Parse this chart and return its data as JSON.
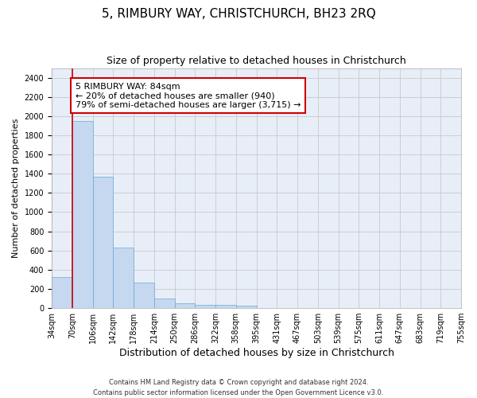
{
  "title": "5, RIMBURY WAY, CHRISTCHURCH, BH23 2RQ",
  "subtitle": "Size of property relative to detached houses in Christchurch",
  "xlabel": "Distribution of detached houses by size in Christchurch",
  "ylabel": "Number of detached properties",
  "bar_values": [
    320,
    1950,
    1370,
    630,
    270,
    100,
    50,
    35,
    30,
    25,
    0,
    0,
    0,
    0,
    0,
    0,
    0,
    0,
    0,
    0
  ],
  "categories": [
    "34sqm",
    "70sqm",
    "106sqm",
    "142sqm",
    "178sqm",
    "214sqm",
    "250sqm",
    "286sqm",
    "322sqm",
    "358sqm",
    "395sqm",
    "431sqm",
    "467sqm",
    "503sqm",
    "539sqm",
    "575sqm",
    "611sqm",
    "647sqm",
    "683sqm",
    "719sqm",
    "755sqm"
  ],
  "bar_color": "#c5d8f0",
  "bar_edge_color": "#6aaad4",
  "grid_color": "#c8c8c8",
  "background_color": "#e8eef8",
  "vline_x": 1,
  "vline_color": "#cc0000",
  "annotation_text": "5 RIMBURY WAY: 84sqm\n← 20% of detached houses are smaller (940)\n79% of semi-detached houses are larger (3,715) →",
  "annotation_box_color": "#cc0000",
  "ylim": [
    0,
    2500
  ],
  "yticks": [
    0,
    200,
    400,
    600,
    800,
    1000,
    1200,
    1400,
    1600,
    1800,
    2000,
    2200,
    2400
  ],
  "footer": "Contains HM Land Registry data © Crown copyright and database right 2024.\nContains public sector information licensed under the Open Government Licence v3.0.",
  "title_fontsize": 11,
  "subtitle_fontsize": 9,
  "xlabel_fontsize": 9,
  "ylabel_fontsize": 8,
  "tick_fontsize": 7,
  "annotation_fontsize": 8,
  "footer_fontsize": 6
}
